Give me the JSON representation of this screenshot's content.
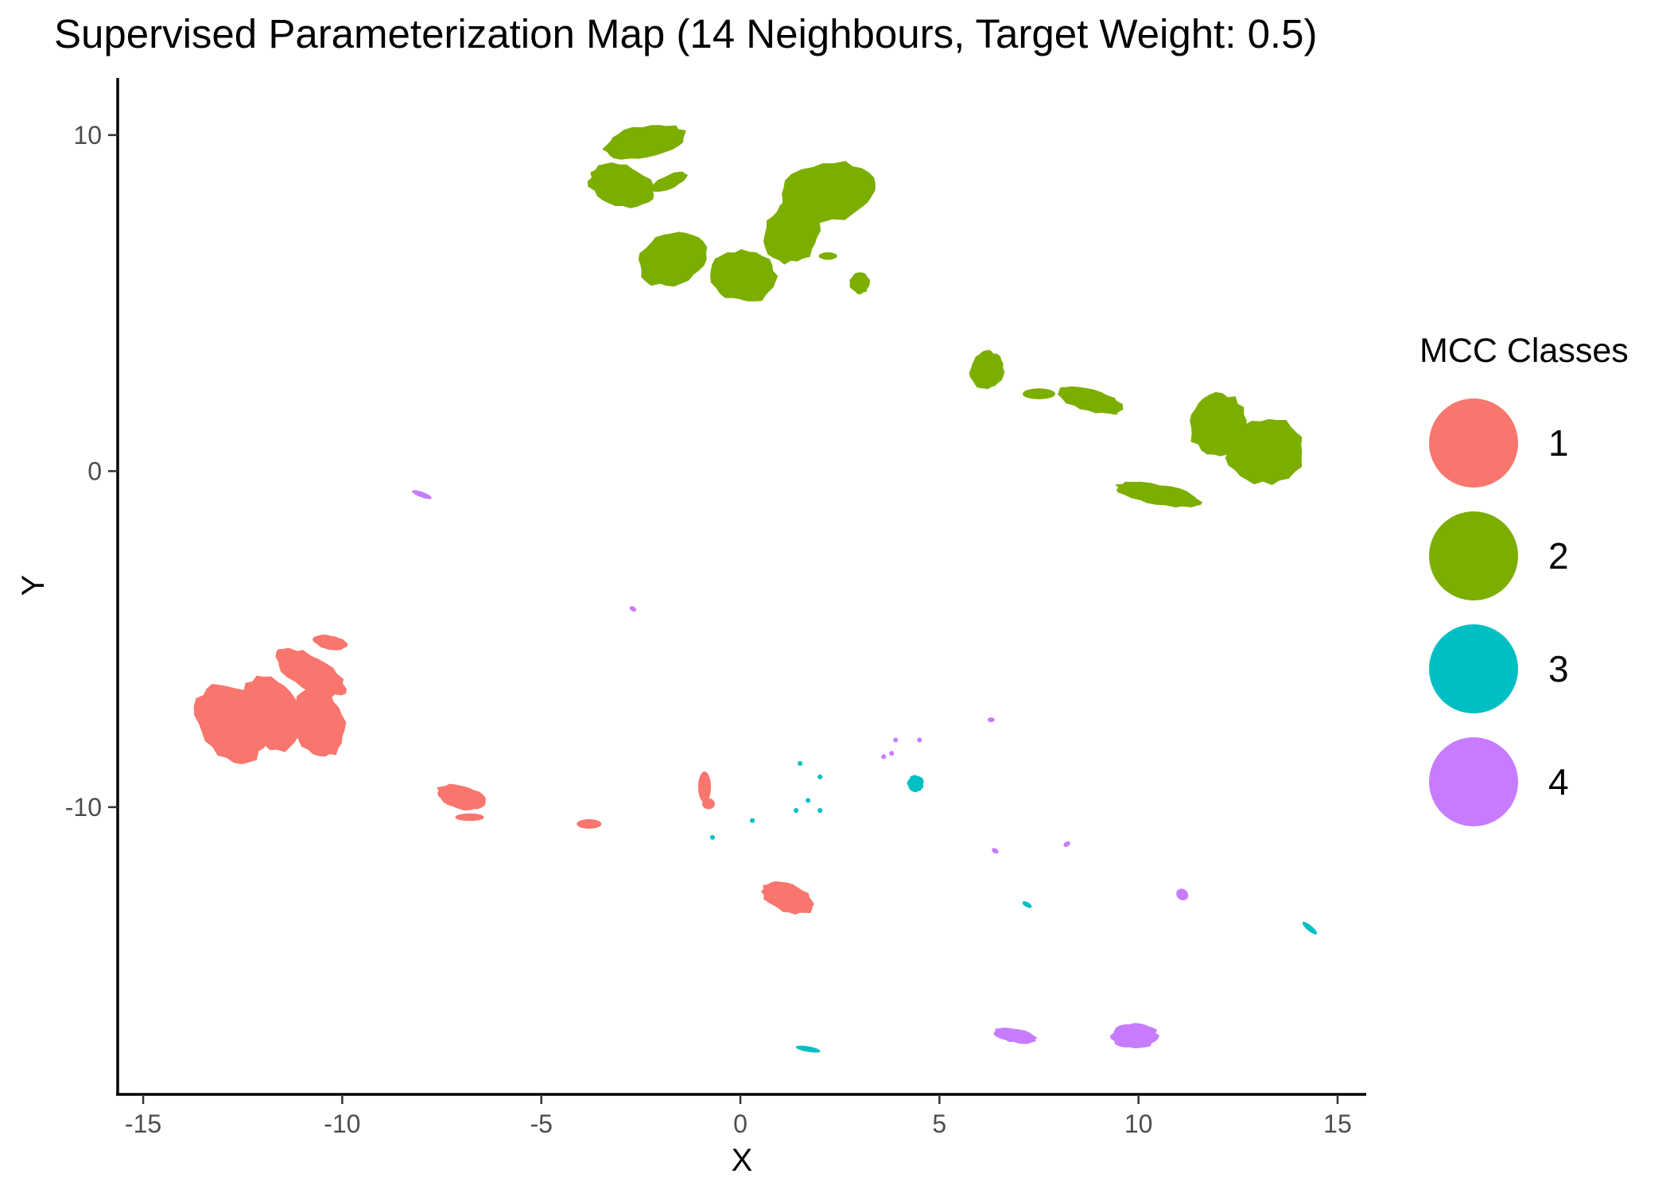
{
  "chart_data": {
    "type": "scatter",
    "title": "Supervised Parameterization Map (14 Neighbours, Target Weight: 0.5)",
    "xlabel": "X",
    "ylabel": "Y",
    "xlim": [
      -15.6,
      15.6
    ],
    "ylim": [
      -18.5,
      11.7
    ],
    "xticks": [
      -15,
      -10,
      -5,
      0,
      5,
      10,
      15
    ],
    "yticks": [
      -10,
      0,
      10
    ],
    "grid": false,
    "legend": {
      "title": "MCC Classes",
      "position": "right",
      "entries": [
        "1",
        "2",
        "3",
        "4"
      ]
    },
    "colors": {
      "1": "#F8766D",
      "2": "#7CAE00",
      "3": "#00BFC4",
      "4": "#C77CFF"
    },
    "series": [
      {
        "name": "1",
        "clusters": [
          {
            "cx": -12.8,
            "cy": -7.5,
            "rx": 0.8,
            "ry": 1.3,
            "rot": 35
          },
          {
            "cx": -11.8,
            "cy": -7.2,
            "rx": 0.75,
            "ry": 1.2,
            "rot": 30
          },
          {
            "cx": -10.6,
            "cy": -7.5,
            "rx": 0.65,
            "ry": 1.1,
            "rot": 20
          },
          {
            "cx": -10.8,
            "cy": -6.0,
            "rx": 1.0,
            "ry": 0.5,
            "rot": -30
          },
          {
            "cx": -10.3,
            "cy": -5.1,
            "rx": 0.45,
            "ry": 0.2,
            "rot": -10
          },
          {
            "cx": -7.0,
            "cy": -9.7,
            "rx": 0.65,
            "ry": 0.35,
            "rot": -15
          },
          {
            "cx": -6.8,
            "cy": -10.3,
            "rx": 0.35,
            "ry": 0.1,
            "rot": 0
          },
          {
            "cx": -3.8,
            "cy": -10.5,
            "rx": 0.3,
            "ry": 0.13,
            "rot": 0
          },
          {
            "cx": -0.9,
            "cy": -9.4,
            "rx": 0.15,
            "ry": 0.45,
            "rot": 0
          },
          {
            "cx": -0.8,
            "cy": -9.9,
            "rx": 0.15,
            "ry": 0.15,
            "rot": 0
          },
          {
            "cx": 1.2,
            "cy": -12.7,
            "rx": 0.7,
            "ry": 0.42,
            "rot": -20
          }
        ]
      },
      {
        "name": "2",
        "clusters": [
          {
            "cx": -2.4,
            "cy": 9.8,
            "rx": 1.05,
            "ry": 0.48,
            "rot": 10
          },
          {
            "cx": -3.0,
            "cy": 8.5,
            "rx": 0.85,
            "ry": 0.62,
            "rot": -15
          },
          {
            "cx": -1.8,
            "cy": 8.6,
            "rx": 0.5,
            "ry": 0.2,
            "rot": 25
          },
          {
            "cx": -1.7,
            "cy": 6.3,
            "rx": 0.9,
            "ry": 0.78,
            "rot": 20
          },
          {
            "cx": 0.1,
            "cy": 5.8,
            "rx": 0.85,
            "ry": 0.78,
            "rot": -10
          },
          {
            "cx": 1.3,
            "cy": 7.1,
            "rx": 0.7,
            "ry": 0.95,
            "rot": -25
          },
          {
            "cx": 2.2,
            "cy": 8.3,
            "rx": 1.3,
            "ry": 0.9,
            "rot": 10
          },
          {
            "cx": 2.2,
            "cy": 6.4,
            "rx": 0.22,
            "ry": 0.1,
            "rot": 0
          },
          {
            "cx": 3.0,
            "cy": 5.6,
            "rx": 0.25,
            "ry": 0.32,
            "rot": 0
          },
          {
            "cx": 6.2,
            "cy": 3.0,
            "rx": 0.42,
            "ry": 0.58,
            "rot": -20
          },
          {
            "cx": 7.5,
            "cy": 2.3,
            "rx": 0.4,
            "ry": 0.15,
            "rot": 0
          },
          {
            "cx": 8.8,
            "cy": 2.1,
            "rx": 0.9,
            "ry": 0.32,
            "rot": -15
          },
          {
            "cx": 12.0,
            "cy": 1.4,
            "rx": 0.75,
            "ry": 0.95,
            "rot": -20
          },
          {
            "cx": 13.2,
            "cy": 0.6,
            "rx": 1.0,
            "ry": 1.0,
            "rot": 10
          },
          {
            "cx": 10.5,
            "cy": -0.7,
            "rx": 1.1,
            "ry": 0.3,
            "rot": -10
          }
        ]
      },
      {
        "name": "3",
        "clusters": [
          {
            "cx": 4.4,
            "cy": -9.3,
            "rx": 0.2,
            "ry": 0.25,
            "rot": 0
          },
          {
            "cx": 1.5,
            "cy": -8.7,
            "rx": 0.03,
            "ry": 0.03,
            "rot": 0
          },
          {
            "cx": 2.0,
            "cy": -9.1,
            "rx": 0.03,
            "ry": 0.03,
            "rot": 0
          },
          {
            "cx": 1.7,
            "cy": -9.8,
            "rx": 0.04,
            "ry": 0.04,
            "rot": 0
          },
          {
            "cx": 0.3,
            "cy": -10.4,
            "rx": 0.03,
            "ry": 0.03,
            "rot": 0
          },
          {
            "cx": -0.7,
            "cy": -10.9,
            "rx": 0.03,
            "ry": 0.03,
            "rot": 0
          },
          {
            "cx": 1.4,
            "cy": -10.1,
            "rx": 0.03,
            "ry": 0.03,
            "rot": 0
          },
          {
            "cx": 2.0,
            "cy": -10.1,
            "rx": 0.03,
            "ry": 0.03,
            "rot": 0
          },
          {
            "cx": 7.2,
            "cy": -12.9,
            "rx": 0.12,
            "ry": 0.06,
            "rot": -30
          },
          {
            "cx": 14.3,
            "cy": -13.6,
            "rx": 0.22,
            "ry": 0.07,
            "rot": -40
          },
          {
            "cx": 1.7,
            "cy": -17.2,
            "rx": 0.3,
            "ry": 0.07,
            "rot": -10
          }
        ]
      },
      {
        "name": "4",
        "clusters": [
          {
            "cx": -8.0,
            "cy": -0.7,
            "rx": 0.25,
            "ry": 0.07,
            "rot": -20
          },
          {
            "cx": -2.7,
            "cy": -4.1,
            "rx": 0.08,
            "ry": 0.05,
            "rot": -30
          },
          {
            "cx": 6.3,
            "cy": -7.4,
            "rx": 0.08,
            "ry": 0.05,
            "rot": 0
          },
          {
            "cx": 3.9,
            "cy": -8.0,
            "rx": 0.04,
            "ry": 0.04,
            "rot": 0
          },
          {
            "cx": 4.5,
            "cy": -8.0,
            "rx": 0.04,
            "ry": 0.04,
            "rot": 0
          },
          {
            "cx": 3.6,
            "cy": -8.5,
            "rx": 0.04,
            "ry": 0.04,
            "rot": 0
          },
          {
            "cx": 3.8,
            "cy": -8.4,
            "rx": 0.04,
            "ry": 0.04,
            "rot": 0
          },
          {
            "cx": 6.4,
            "cy": -11.3,
            "rx": 0.08,
            "ry": 0.06,
            "rot": -30
          },
          {
            "cx": 8.2,
            "cy": -11.1,
            "rx": 0.08,
            "ry": 0.05,
            "rot": 30
          },
          {
            "cx": 11.1,
            "cy": -12.6,
            "rx": 0.15,
            "ry": 0.15,
            "rot": -40
          },
          {
            "cx": 6.9,
            "cy": -16.8,
            "rx": 0.55,
            "ry": 0.2,
            "rot": -10
          },
          {
            "cx": 9.9,
            "cy": -16.8,
            "rx": 0.6,
            "ry": 0.38,
            "rot": 0
          }
        ]
      }
    ]
  }
}
